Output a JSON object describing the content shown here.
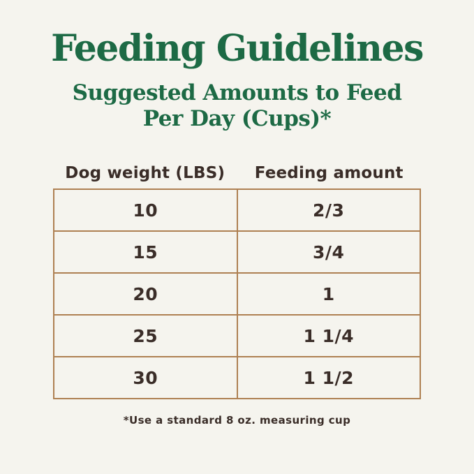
{
  "header": {
    "title": "Feeding Guidelines",
    "subtitle_line1": "Suggested Amounts to Feed",
    "subtitle_line2": "Per Day (Cups)*"
  },
  "chart_data": {
    "type": "table",
    "title": "Feeding Guidelines",
    "subtitle": "Suggested Amounts to Feed Per Day (Cups)*",
    "columns": [
      "Dog weight (LBS)",
      "Feeding amount"
    ],
    "rows": [
      [
        "10",
        "2/3"
      ],
      [
        "15",
        "3/4"
      ],
      [
        "20",
        "1"
      ],
      [
        "25",
        "1 1/4"
      ],
      [
        "30",
        "1 1/2"
      ]
    ],
    "footnote": "*Use a standard 8 oz. measuring cup"
  },
  "footer": {
    "footnote": "*Use a standard 8 oz. measuring cup"
  },
  "colors": {
    "background": "#f5f4ee",
    "heading_green": "#1d6a45",
    "table_border": "#ae8052",
    "text_dark": "#3a2d28"
  }
}
